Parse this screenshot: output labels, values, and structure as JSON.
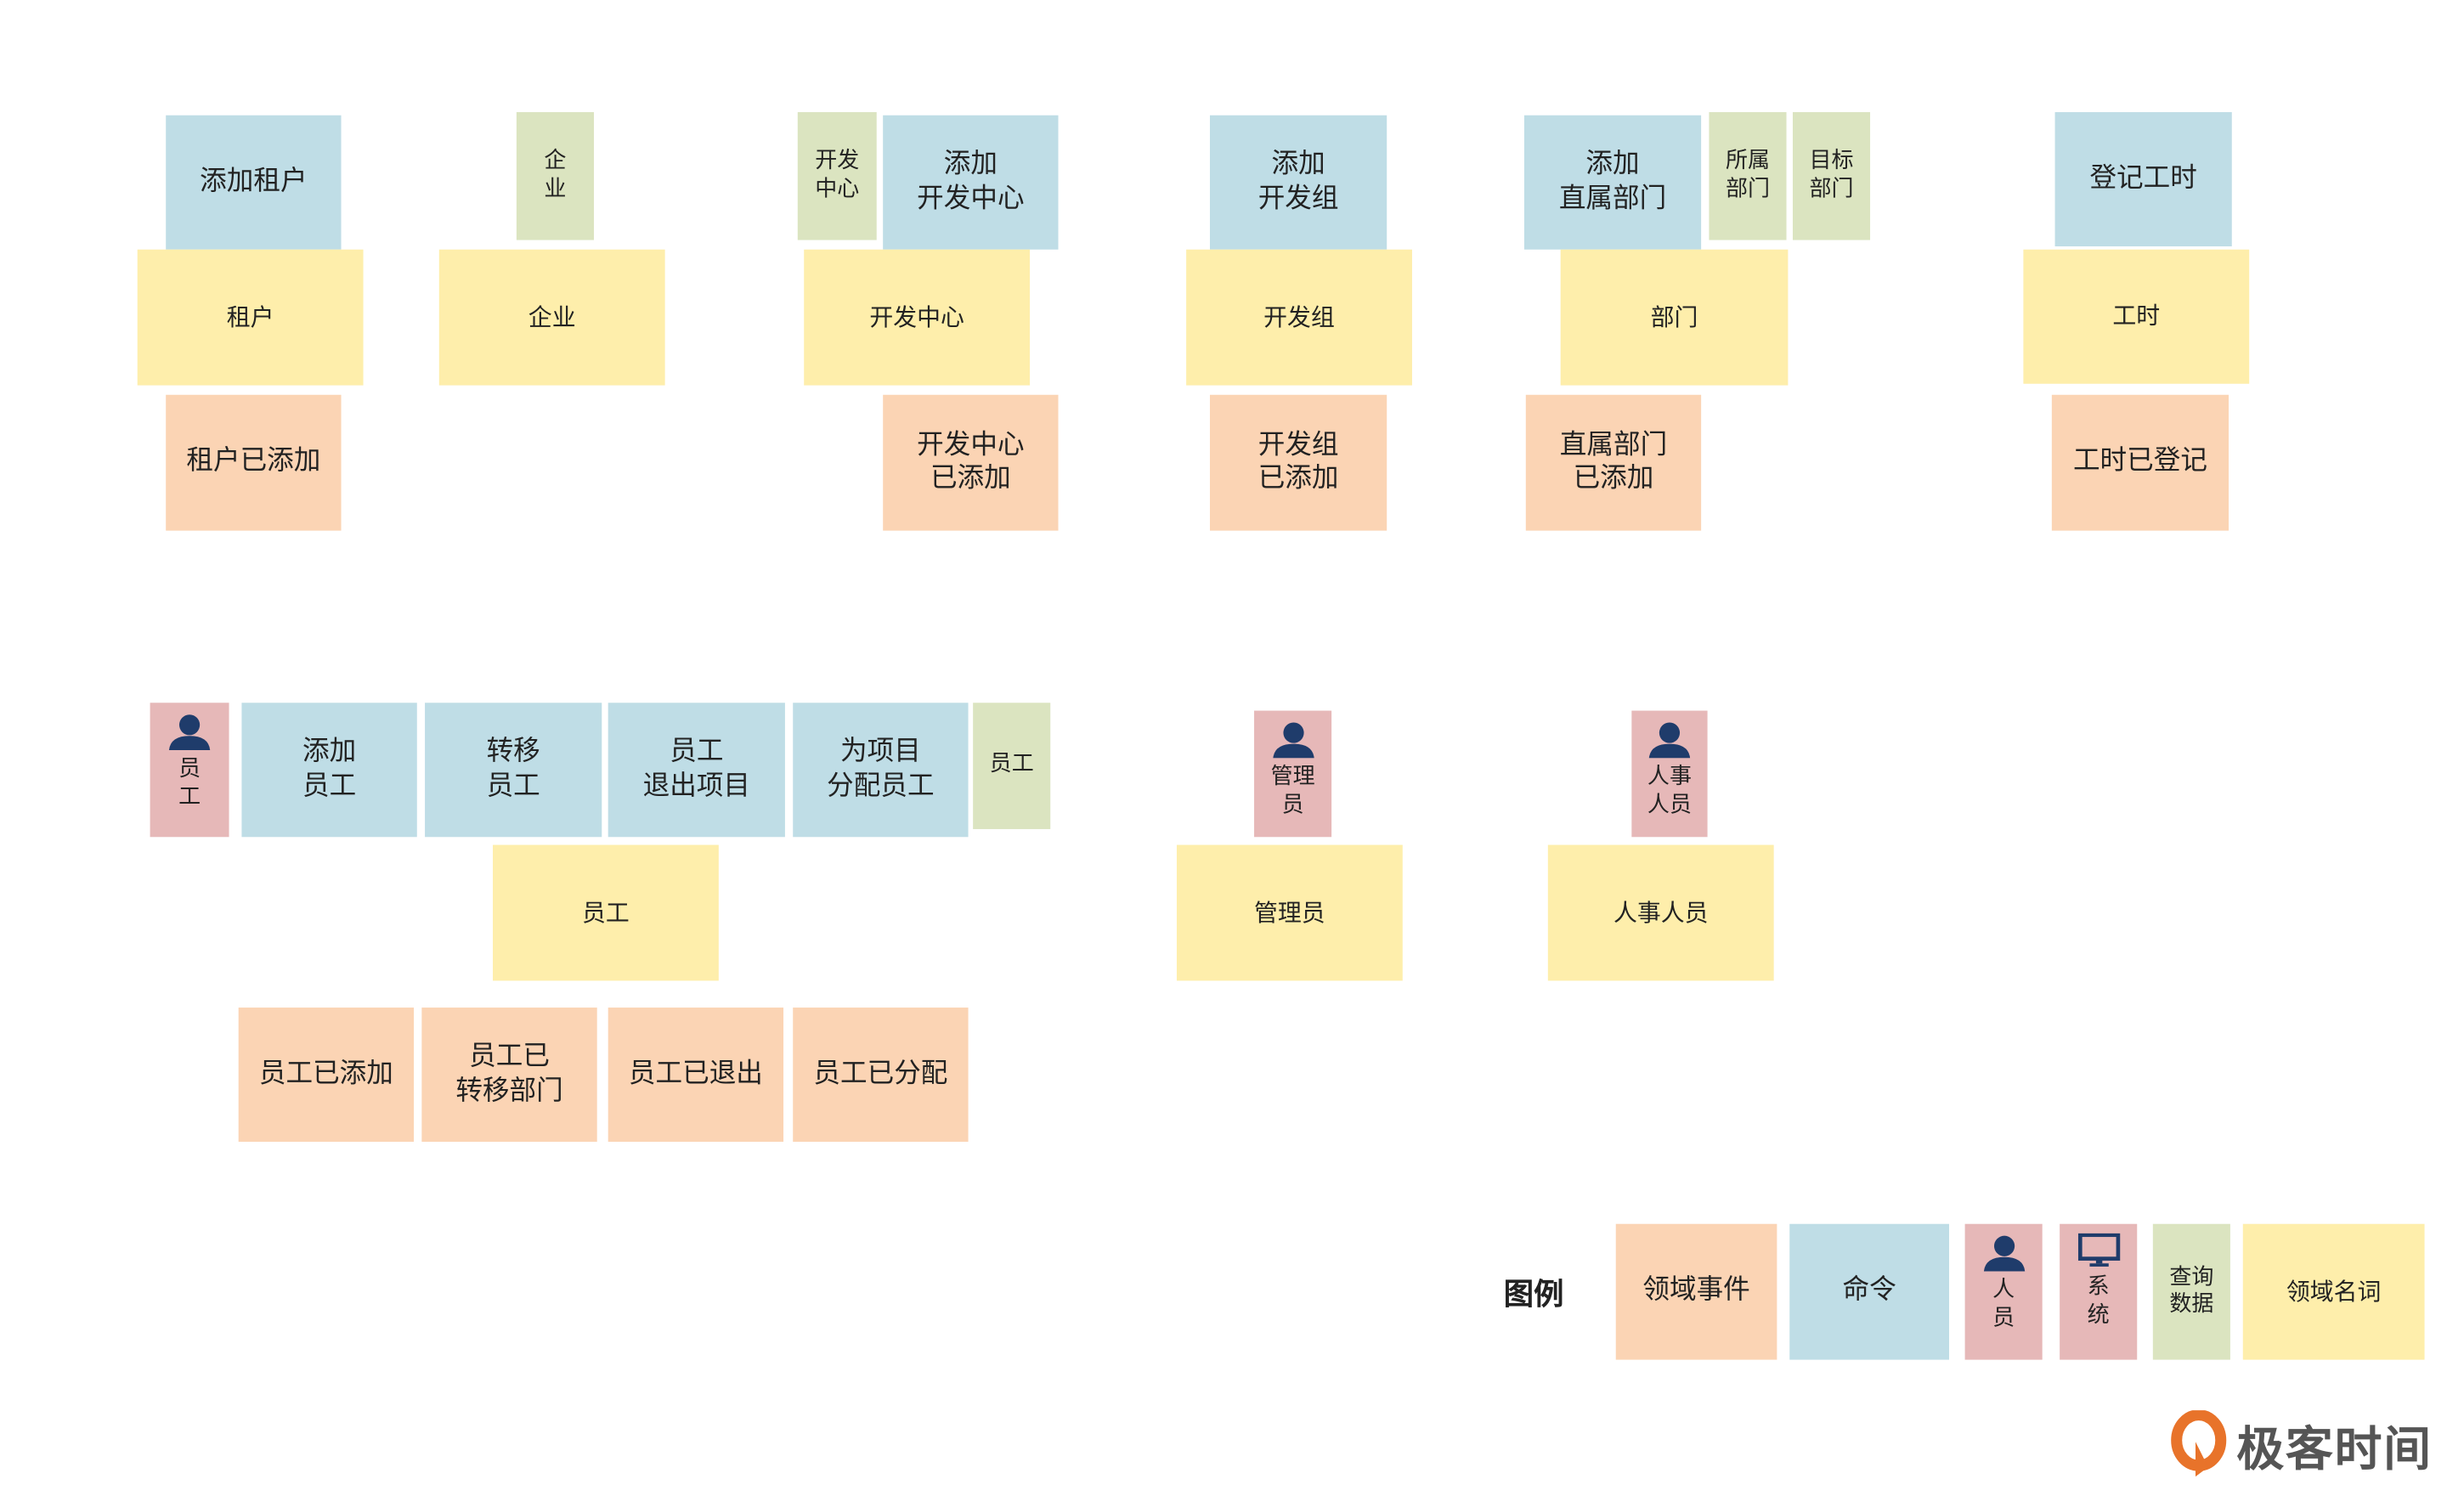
{
  "colors": {
    "command": "#bfdde6",
    "entity": "#feeeab",
    "event": "#fbd4b4",
    "query": "#dbe4c0",
    "actor": "#e6b8b8",
    "actor_icon": "#1f3c6b",
    "logo": "#e8732a"
  },
  "groups": {
    "tenant": {
      "command": "添加租户",
      "entity": "租户",
      "event": "租户已添加"
    },
    "enterprise": {
      "query": "企\n业",
      "entity": "企业"
    },
    "dev_center": {
      "query": "开发\n中心",
      "command": "添加\n开发中心",
      "entity": "开发中心",
      "event": "开发中心\n已添加"
    },
    "dev_group": {
      "command": "添加\n开发组",
      "entity": "开发组",
      "event": "开发组\n已添加"
    },
    "department": {
      "command": "添加\n直属部门",
      "query_parent": "所属\n部门",
      "query_target": "目标\n部门",
      "entity": "部门",
      "event": "直属部门\n已添加"
    },
    "work_hours": {
      "command": "登记工时",
      "entity": "工时",
      "event": "工时已登记"
    },
    "employee": {
      "actor": "员\n工",
      "commands": [
        "添加\n员工",
        "转移\n员工",
        "员工\n退出项目",
        "为项目\n分配员工"
      ],
      "query": "员工",
      "entity": "员工",
      "events": [
        "员工已添加",
        "员工已\n转移部门",
        "员工已退出",
        "员工已分配"
      ]
    },
    "admin": {
      "actor": "管理\n员",
      "entity": "管理员"
    },
    "hr": {
      "actor": "人事\n人员",
      "entity": "人事人员"
    }
  },
  "legend": {
    "title": "图例",
    "event": "领域事件",
    "command": "命令",
    "actor": "人\n员",
    "system": "系\n统",
    "query": "查询\n数据",
    "entity": "领域名词"
  },
  "logo": {
    "text": "极客时间"
  }
}
